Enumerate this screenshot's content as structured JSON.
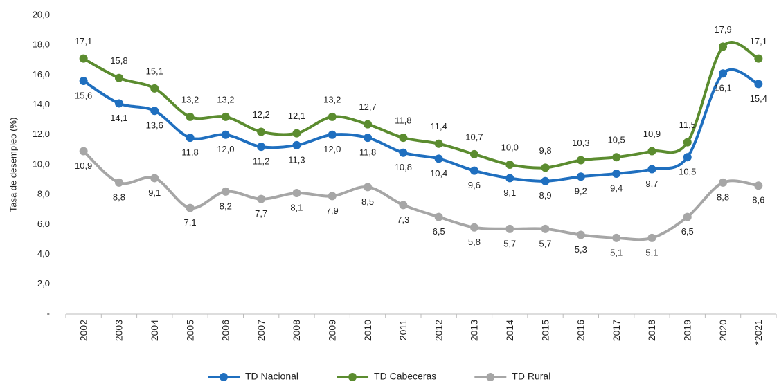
{
  "chart_data": {
    "type": "line",
    "y_label": "Tasa de desempleo (%)",
    "categories": [
      "2002",
      "2003",
      "2004",
      "2005",
      "2006",
      "2007",
      "2008",
      "2009",
      "2010",
      "2011",
      "2012",
      "2013",
      "2014",
      "2015",
      "2016",
      "2017",
      "2018",
      "2019",
      "2020",
      "*2021"
    ],
    "series": [
      {
        "name": "TD Nacional",
        "color": "#1f6fbf",
        "values": [
          15.6,
          14.1,
          13.6,
          11.8,
          12.0,
          11.2,
          11.3,
          12.0,
          11.8,
          10.8,
          10.4,
          9.6,
          9.1,
          8.9,
          9.2,
          9.4,
          9.7,
          10.5,
          16.1,
          15.4
        ],
        "value_labels": [
          "15,6",
          "14,1",
          "13,6",
          "11,8",
          "12,0",
          "11,2",
          "11,3",
          "12,0",
          "11,8",
          "10,8",
          "10,4",
          "9,6",
          "9,1",
          "8,9",
          "9,2",
          "9,4",
          "9,7",
          "10,5",
          "16,1",
          "15,4"
        ]
      },
      {
        "name": "TD Cabeceras",
        "color": "#5b8c2f",
        "values": [
          17.1,
          15.8,
          15.1,
          13.2,
          13.2,
          12.2,
          12.1,
          13.2,
          12.7,
          11.8,
          11.4,
          10.7,
          10.0,
          9.8,
          10.3,
          10.5,
          10.9,
          11.5,
          17.9,
          17.1
        ],
        "value_labels": [
          "17,1",
          "15,8",
          "15,1",
          "13,2",
          "13,2",
          "12,2",
          "12,1",
          "13,2",
          "12,7",
          "11,8",
          "11,4",
          "10,7",
          "10,0",
          "9,8",
          "10,3",
          "10,5",
          "10,9",
          "11,5",
          "17,9",
          "17,1"
        ]
      },
      {
        "name": "TD Rural",
        "color": "#a6a6a6",
        "values": [
          10.9,
          8.8,
          9.1,
          7.1,
          8.2,
          7.7,
          8.1,
          7.9,
          8.5,
          7.3,
          6.5,
          5.8,
          5.7,
          5.7,
          5.3,
          5.1,
          5.1,
          6.5,
          8.8,
          8.6
        ],
        "value_labels": [
          "10,9",
          "8,8",
          "9,1",
          "7,1",
          "8,2",
          "7,7",
          "8,1",
          "7,9",
          "8,5",
          "7,3",
          "6,5",
          "5,8",
          "5,7",
          "5,7",
          "5,3",
          "5,1",
          "5,1",
          "6,5",
          "8,8",
          "8,6"
        ]
      }
    ],
    "ylim": [
      0,
      20
    ],
    "yticks": [
      {
        "value": 0,
        "label": "-"
      },
      {
        "value": 2,
        "label": "2,0"
      },
      {
        "value": 4,
        "label": "4,0"
      },
      {
        "value": 6,
        "label": "6,0"
      },
      {
        "value": 8,
        "label": "8,0"
      },
      {
        "value": 10,
        "label": "10,0"
      },
      {
        "value": 12,
        "label": "12,0"
      },
      {
        "value": 14,
        "label": "14,0"
      },
      {
        "value": 16,
        "label": "16,0"
      },
      {
        "value": 18,
        "label": "18,0"
      },
      {
        "value": 20,
        "label": "20,0"
      }
    ],
    "legend": "bottom"
  }
}
